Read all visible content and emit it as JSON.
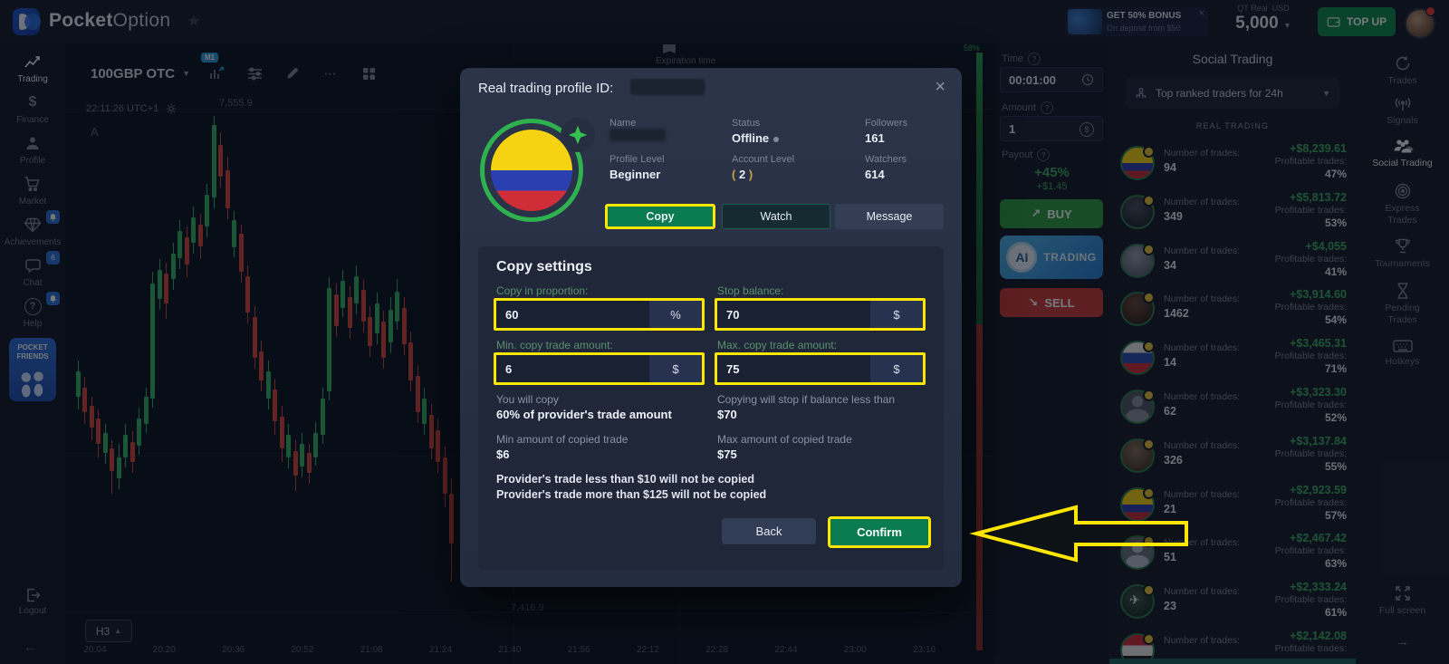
{
  "topbar": {
    "brand_bold": "Pocket",
    "brand_light": "Option",
    "bonus_title": "GET 50% BONUS",
    "bonus_subtitle": "On deposit from $50",
    "bonus_close": "×",
    "account_type": "QT Real",
    "currency": "USD",
    "balance": "5,000",
    "topup_label": "TOP UP"
  },
  "sidebar": {
    "items": [
      {
        "label": "Trading"
      },
      {
        "label": "Finance"
      },
      {
        "label": "Profile"
      },
      {
        "label": "Market"
      },
      {
        "label": "Achievements"
      },
      {
        "label": "Chat",
        "badge": "6"
      },
      {
        "label": "Help"
      }
    ],
    "pocket_friends_line1": "POCKET",
    "pocket_friends_line2": "FRIENDS",
    "logout_label": "Logout",
    "collapse_arrow": "←"
  },
  "chart": {
    "symbol": "100GBP OTC",
    "timeframe_badge": "M1",
    "clock": "22:11:26 UTC+1",
    "price_upper": "7,555.9",
    "price_lower": "7,416.9",
    "corner_label": "A",
    "expiration_label": "Expiration time",
    "interval_button": "H3",
    "sentiment_pct": "58%",
    "scale_badge": "0",
    "times": [
      "20:04",
      "20:20",
      "20:36",
      "20:52",
      "21:08",
      "21:24",
      "21:40",
      "21:56",
      "22:12",
      "22:28",
      "22:44",
      "23:00",
      "23:16"
    ],
    "candles": [
      [
        84,
        398,
        410,
        438,
        452,
        "g"
      ],
      [
        91,
        416,
        428,
        455,
        468,
        "r"
      ],
      [
        99,
        438,
        448,
        472,
        486,
        "r"
      ],
      [
        106,
        452,
        462,
        490,
        505,
        "r"
      ],
      [
        114,
        468,
        478,
        500,
        512,
        "g"
      ],
      [
        121,
        486,
        495,
        520,
        545,
        "r"
      ],
      [
        129,
        490,
        505,
        528,
        540,
        "g"
      ],
      [
        136,
        468,
        480,
        505,
        516,
        "g"
      ],
      [
        144,
        476,
        488,
        510,
        522,
        "r"
      ],
      [
        151,
        450,
        462,
        492,
        502,
        "g"
      ],
      [
        159,
        428,
        438,
        468,
        478,
        "g"
      ],
      [
        166,
        300,
        313,
        440,
        450,
        "g"
      ],
      [
        174,
        286,
        298,
        330,
        342,
        "g"
      ],
      [
        181,
        290,
        302,
        335,
        352,
        "r"
      ],
      [
        189,
        268,
        280,
        308,
        320,
        "g"
      ],
      [
        196,
        243,
        255,
        285,
        297,
        "g"
      ],
      [
        204,
        250,
        262,
        292,
        306,
        "r"
      ],
      [
        211,
        228,
        240,
        268,
        280,
        "g"
      ],
      [
        219,
        236,
        248,
        272,
        286,
        "r"
      ],
      [
        226,
        203,
        215,
        250,
        262,
        "g"
      ],
      [
        234,
        128,
        138,
        218,
        230,
        "g"
      ],
      [
        241,
        146,
        160,
        195,
        207,
        "r"
      ],
      [
        249,
        173,
        188,
        230,
        242,
        "r"
      ],
      [
        256,
        233,
        243,
        273,
        284,
        "g"
      ],
      [
        264,
        248,
        258,
        300,
        312,
        "r"
      ],
      [
        271,
        293,
        305,
        345,
        357,
        "r"
      ],
      [
        279,
        338,
        350,
        395,
        407,
        "r"
      ],
      [
        286,
        376,
        388,
        420,
        432,
        "r"
      ],
      [
        294,
        398,
        410,
        440,
        452,
        "g"
      ],
      [
        301,
        418,
        430,
        465,
        480,
        "r"
      ],
      [
        309,
        448,
        460,
        495,
        510,
        "r"
      ],
      [
        316,
        468,
        480,
        505,
        517,
        "g"
      ],
      [
        324,
        486,
        498,
        525,
        542,
        "r"
      ],
      [
        331,
        478,
        490,
        515,
        527,
        "g"
      ],
      [
        339,
        490,
        500,
        522,
        534,
        "r"
      ],
      [
        346,
        466,
        478,
        505,
        514,
        "g"
      ],
      [
        354,
        428,
        440,
        480,
        490,
        "g"
      ],
      [
        361,
        306,
        318,
        432,
        442,
        "g"
      ],
      [
        369,
        313,
        325,
        360,
        372,
        "r"
      ],
      [
        376,
        298,
        310,
        340,
        350,
        "g"
      ],
      [
        384,
        316,
        328,
        362,
        374,
        "r"
      ],
      [
        391,
        293,
        305,
        335,
        347,
        "g"
      ],
      [
        399,
        308,
        320,
        355,
        367,
        "r"
      ],
      [
        406,
        338,
        350,
        382,
        394,
        "r"
      ],
      [
        414,
        323,
        335,
        368,
        380,
        "g"
      ],
      [
        421,
        343,
        355,
        395,
        407,
        "r"
      ],
      [
        429,
        328,
        342,
        378,
        390,
        "g"
      ],
      [
        436,
        308,
        322,
        355,
        364,
        "g"
      ],
      [
        444,
        328,
        340,
        380,
        392,
        "r"
      ],
      [
        451,
        366,
        378,
        420,
        432,
        "r"
      ],
      [
        459,
        403,
        415,
        455,
        467,
        "r"
      ],
      [
        466,
        428,
        440,
        468,
        480,
        "g"
      ],
      [
        474,
        446,
        458,
        495,
        507,
        "r"
      ],
      [
        481,
        463,
        475,
        510,
        522,
        "r"
      ],
      [
        489,
        493,
        505,
        545,
        560,
        "r"
      ],
      [
        496,
        528,
        545,
        600,
        642,
        "r"
      ]
    ]
  },
  "trade_panel": {
    "time_label": "Time",
    "time_value": "00:01:00",
    "amount_label": "Amount",
    "amount_value": "1",
    "payout_label": "Payout",
    "payout_pct": "+45%",
    "payout_amount": "+$1.45",
    "buy_label": "BUY",
    "buy_arrow": "↗",
    "ai_chip": "AI",
    "ai_word": "TRADING",
    "sell_label": "SELL",
    "sell_arrow": "↘"
  },
  "modal": {
    "title": "Real trading profile ID:",
    "close": "×",
    "fields": {
      "name_label": "Name",
      "status_label": "Status",
      "status_value": "Offline",
      "followers_label": "Followers",
      "followers_value": "161",
      "profile_level_label": "Profile Level",
      "profile_level_value": "Beginner",
      "account_level_label": "Account Level",
      "account_level_value": "2",
      "watchers_label": "Watchers",
      "watchers_value": "614"
    },
    "buttons": {
      "copy": "Copy",
      "watch": "Watch",
      "message": "Message",
      "back": "Back",
      "confirm": "Confirm"
    },
    "copy_settings": {
      "heading": "Copy settings",
      "proportion_label": "Copy in proportion:",
      "proportion_value": "60",
      "proportion_unit": "%",
      "stop_label": "Stop balance:",
      "stop_value": "70",
      "stop_unit": "$",
      "min_label": "Min. copy trade amount:",
      "min_value": "6",
      "min_unit": "$",
      "max_label": "Max. copy trade amount:",
      "max_value": "75",
      "max_unit": "$",
      "summary1_label": "You will copy",
      "summary1_value": "60% of provider's trade amount",
      "summary2_label": "Copying will stop if balance less than",
      "summary2_value": "$70",
      "summary3_label": "Min amount of copied trade",
      "summary3_value": "$6",
      "summary4_label": "Max amount of copied trade",
      "summary4_value": "$75",
      "note1": "Provider's trade less than $10 will not be copied",
      "note2": "Provider's trade more than $125 will not be copied"
    }
  },
  "social": {
    "title": "Social Trading",
    "filter": "Top ranked traders for 24h",
    "section": "REAL TRADING",
    "trades_label": "Number of trades:",
    "profitable_label": "Profitable trades:",
    "traders": [
      {
        "avatar": "colombia",
        "trades": "94",
        "profit": "+$8,239.61",
        "profitable": "47%"
      },
      {
        "avatar": "photo-dark",
        "trades": "349",
        "profit": "+$5,813.72",
        "profitable": "53%"
      },
      {
        "avatar": "photo-light",
        "trades": "34",
        "profit": "+$4,055",
        "profitable": "41%"
      },
      {
        "avatar": "photo-brown",
        "trades": "1462",
        "profit": "+$3,914.60",
        "profitable": "54%"
      },
      {
        "avatar": "russia",
        "trades": "14",
        "profit": "+$3,465.31",
        "profitable": "71%"
      },
      {
        "avatar": "silhouette",
        "trades": "62",
        "profit": "+$3,323.30",
        "profitable": "52%"
      },
      {
        "avatar": "photo-tan",
        "trades": "326",
        "profit": "+$3,137.84",
        "profitable": "55%"
      },
      {
        "avatar": "colombia",
        "trades": "21",
        "profit": "+$2,923.59",
        "profitable": "57%"
      },
      {
        "avatar": "silhouette-light",
        "trades": "51",
        "profit": "+$2,467.42",
        "profitable": "63%"
      },
      {
        "avatar": "photo-plane",
        "trades": "23",
        "profit": "+$2,333.24",
        "profitable": "61%"
      },
      {
        "avatar": "iraq",
        "trades": "",
        "profit": "+$2,142.08",
        "profitable": ""
      }
    ]
  },
  "right_rail": {
    "items": [
      {
        "label": "Trades"
      },
      {
        "label": "Signals"
      },
      {
        "label": "Social Trading",
        "active": true
      },
      {
        "label": "Express Trades"
      },
      {
        "label": "Tournaments"
      },
      {
        "label": "Pending Trades"
      },
      {
        "label": "Hotkeys"
      }
    ],
    "fullscreen_label": "Full screen",
    "next_arrow": "→"
  },
  "colors": {
    "highlight_yellow": "#ffe600",
    "buy_green": "#2f9e44",
    "sell_red": "#c93a38",
    "profit_green": "#3fae63",
    "candle_up": "#36b566",
    "candle_down": "#d8453c",
    "accent_blue": "#2d9cdb"
  }
}
